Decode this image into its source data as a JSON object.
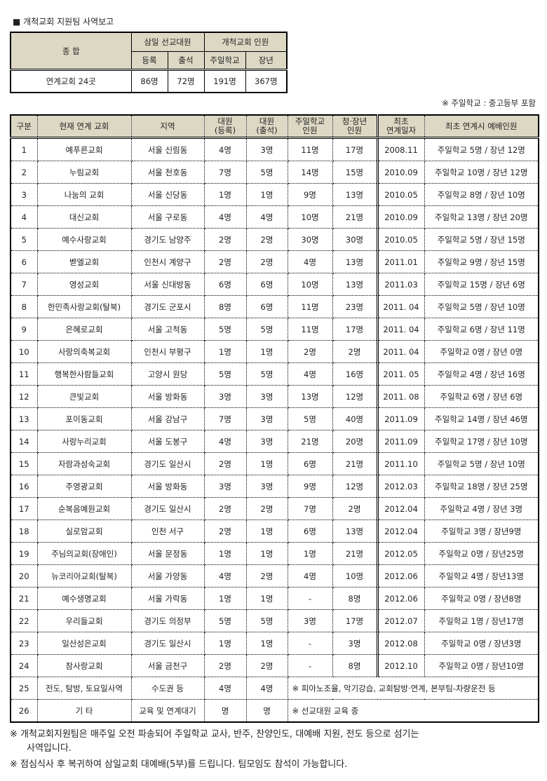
{
  "title": "■ 개척교회 지원팀 사역보고",
  "summary": {
    "h_total": "종 합",
    "h_team": "삼일 선교대원",
    "h_church": "개척교회 인원",
    "h_reg": "등록",
    "h_att": "출석",
    "h_sunday": "주일학교",
    "h_adult": "장년",
    "label": "연계교회 24곳",
    "reg": "86명",
    "att": "72명",
    "sunday": "191명",
    "adult": "367명"
  },
  "note_right": "※ 주일학교 : 중고등부 포함",
  "main": {
    "headers": [
      "구분",
      "현재 연계 교회",
      "지역",
      "대원\n(등록)",
      "대원\n(출석)",
      "주일학교\n인원",
      "청·장년\n인원",
      "최초\n연계일자",
      "최초 연계시 예배인원"
    ],
    "rows": [
      [
        "1",
        "예푸른교회",
        "서울 신림동",
        "4명",
        "3명",
        "11명",
        "17명",
        "2008.11",
        "주일학교 5명 / 장년 12명"
      ],
      [
        "2",
        "누림교회",
        "서울 천호동",
        "7명",
        "5명",
        "14명",
        "15명",
        "2010.09",
        "주일학교 10명 / 장년 12명"
      ],
      [
        "3",
        "나눔의 교회",
        "서울 신당동",
        "1명",
        "1명",
        "9명",
        "13명",
        "2010.05",
        "주일학교 8명 / 장년 10명"
      ],
      [
        "4",
        "대신교회",
        "서울 구로동",
        "4명",
        "4명",
        "10명",
        "21명",
        "2010.09",
        "주일학교 13명 / 장년 20명"
      ],
      [
        "5",
        "예수사랑교회",
        "경기도 남양주",
        "2명",
        "2명",
        "30명",
        "30명",
        "2010.05",
        "주일학교 5명 / 장년 15명"
      ],
      [
        "6",
        "벧엘교회",
        "인천시 계양구",
        "2명",
        "2명",
        "4명",
        "13명",
        "2011.01",
        "주일학교 9명 / 장년 15명"
      ],
      [
        "7",
        "영성교회",
        "서울 신대방동",
        "6명",
        "6명",
        "10명",
        "13명",
        "2011.03",
        "주일학교 15명 / 장년 6명"
      ],
      [
        "8",
        "한민족사랑교회(탈북)",
        "경기도 군포시",
        "8명",
        "6명",
        "11명",
        "23명",
        "2011. 04",
        "주일학교 5명 / 장년 10명"
      ],
      [
        "9",
        "은혜로교회",
        "서울 고척동",
        "5명",
        "5명",
        "11명",
        "17명",
        "2011. 04",
        "주일학교 6명 / 장년 11명"
      ],
      [
        "10",
        "사랑의축복교회",
        "인천시 부평구",
        "1명",
        "1명",
        "2명",
        "2명",
        "2011. 04",
        "주일학교 0명 / 장년 0명"
      ],
      [
        "11",
        "행복한사람들교회",
        "고양시 원당",
        "5명",
        "5명",
        "4명",
        "16명",
        "2011. 05",
        "주일학교 4명 / 장년 16명"
      ],
      [
        "12",
        "큰빛교회",
        "서울 방화동",
        "3명",
        "3명",
        "13명",
        "12명",
        "2011. 08",
        "주일학교 6명 / 장년 6명"
      ],
      [
        "13",
        "포이동교회",
        "서울 강남구",
        "7명",
        "3명",
        "5명",
        "40명",
        "2011.09",
        "주일학교 14명 / 장년 46명"
      ],
      [
        "14",
        "사랑누리교회",
        "서울 도봉구",
        "4명",
        "3명",
        "21명",
        "20명",
        "2011.09",
        "주일학교 17명 / 장년 10명"
      ],
      [
        "15",
        "자람과성숙교회",
        "경기도 일산시",
        "2명",
        "1명",
        "6명",
        "21명",
        "2011.10",
        "주일학교 5명 / 장년 10명"
      ],
      [
        "16",
        "주영광교회",
        "서울 방화동",
        "3명",
        "3명",
        "9명",
        "12명",
        "2012.03",
        "주일학교 18명 / 장년 25명"
      ],
      [
        "17",
        "순복음예원교회",
        "경기도 일산시",
        "2명",
        "2명",
        "7명",
        "2명",
        "2012.04",
        "주일학교 4명 / 장년 3명"
      ],
      [
        "18",
        "실로암교회",
        "인천 서구",
        "2명",
        "1명",
        "6명",
        "13명",
        "2012.04",
        "주일학교 3명 / 장년9명"
      ],
      [
        "19",
        "주님의교회(장애인)",
        "서울 문정동",
        "1명",
        "1명",
        "1명",
        "21명",
        "2012.05",
        "주일학교 0명 / 장년25명"
      ],
      [
        "20",
        "뉴코리아교회(탈북)",
        "서울 가양동",
        "4명",
        "2명",
        "4명",
        "10명",
        "2012.06",
        "주일학교 4명 / 장년13명"
      ],
      [
        "21",
        "예수생명교회",
        "서울 가락동",
        "1명",
        "1명",
        "-",
        "8명",
        "2012.06",
        "주일학교 0명 / 장년8명"
      ],
      [
        "22",
        "우리들교회",
        "경기도 의정부",
        "5명",
        "5명",
        "3명",
        "17명",
        "2012.07",
        "주일학교 1명 / 장년17명"
      ],
      [
        "23",
        "일산성은교회",
        "경기도 일산시",
        "1명",
        "1명",
        "-",
        "3명",
        "2012.08",
        "주일학교 0명 / 장년3명"
      ],
      [
        "24",
        "참사랑교회",
        "서울 금천구",
        "2명",
        "2명",
        "-",
        "8명",
        "2012.10",
        "주일학교 0명 / 장년10명"
      ]
    ],
    "extra_rows": [
      [
        "25",
        "전도, 탐방, 토요일사역",
        "수도권 등",
        "4명",
        "4명",
        "※ 피아노조율, 악기강습, 교회탐방·연계, 본부팀-차량운전 등"
      ],
      [
        "26",
        "기 타",
        "교육 및 연계대기",
        "명",
        "명",
        "※ 선교대원 교육 중"
      ]
    ]
  },
  "footer": {
    "line1": "※ 개척교회지원팀은 매주일 오전 파송되어 주일학교 교사, 반주, 찬양인도, 대예배 지원, 전도 등으로 섬기는",
    "line1b": "사역입니다.",
    "line2": "※ 점심식사 후 복귀하여 삼일교회 대예배(5부)를 드립니다. 팀모임도 참석이 가능합니다."
  },
  "colors": {
    "header_bg": "#dcd8c4"
  }
}
